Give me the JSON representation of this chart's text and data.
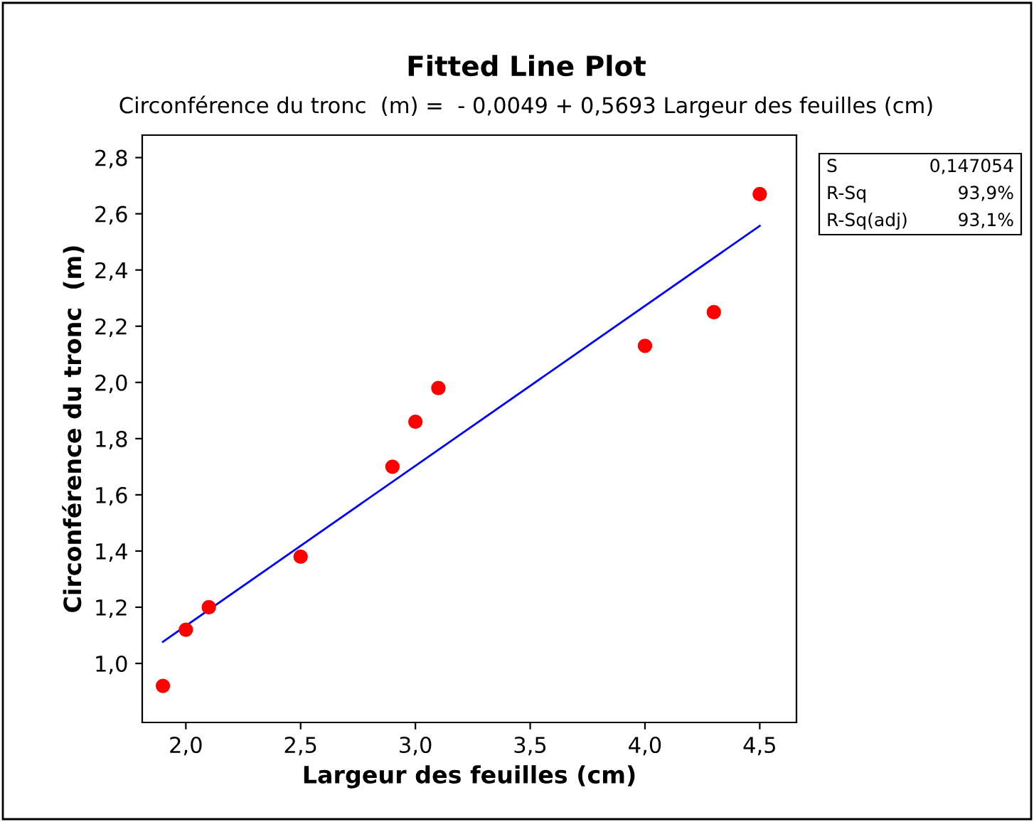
{
  "chart_data": {
    "type": "scatter",
    "title": "Fitted Line Plot",
    "subtitle": "Circonférence du tronc  (m) =  - 0,0049 + 0,5693 Largeur des feuilles (cm)",
    "xlabel": "Largeur des feuilles (cm)",
    "ylabel": "Circonférence du tronc  (m)",
    "x": [
      1.9,
      2.0,
      2.1,
      2.5,
      2.9,
      3.0,
      3.1,
      4.0,
      4.3,
      4.5
    ],
    "series": [
      {
        "color": "#ff0000",
        "marker": "circle",
        "values": [
          0.92,
          1.12,
          1.2,
          1.38,
          1.7,
          1.86,
          1.98,
          2.13,
          2.25,
          2.67
        ]
      },
      {
        "type": "line",
        "color": "#0000ff",
        "marker": "none",
        "line_style": "solid",
        "x": [
          1.9,
          4.5
        ],
        "values": [
          1.077,
          2.557
        ]
      }
    ],
    "xlim": [
      1.81,
      4.66
    ],
    "ylim": [
      0.79,
      2.88
    ],
    "xticks": [
      {
        "value": 2.0,
        "label": "2,0"
      },
      {
        "value": 2.5,
        "label": "2,5"
      },
      {
        "value": 3.0,
        "label": "3,0"
      },
      {
        "value": 3.5,
        "label": "3,5"
      },
      {
        "value": 4.0,
        "label": "4,0"
      },
      {
        "value": 4.5,
        "label": "4,5"
      }
    ],
    "yticks": [
      {
        "value": 1.0,
        "label": "1,0"
      },
      {
        "value": 1.2,
        "label": "1,2"
      },
      {
        "value": 1.4,
        "label": "1,4"
      },
      {
        "value": 1.6,
        "label": "1,6"
      },
      {
        "value": 1.8,
        "label": "1,8"
      },
      {
        "value": 2.0,
        "label": "2,0"
      },
      {
        "value": 2.2,
        "label": "2,2"
      },
      {
        "value": 2.4,
        "label": "2,4"
      },
      {
        "value": 2.6,
        "label": "2,6"
      },
      {
        "value": 2.8,
        "label": "2,8"
      }
    ],
    "grid": false,
    "legend": false,
    "annotations": [
      "S",
      "0,147054",
      "R-Sq",
      "93,9%",
      "R-Sq(adj)",
      "93,1%"
    ]
  }
}
